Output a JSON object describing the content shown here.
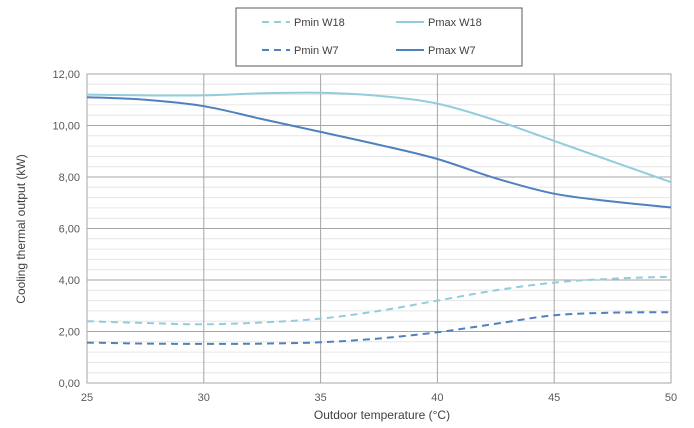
{
  "chart_data": {
    "type": "line",
    "xlabel": "Outdoor temperature (°C)",
    "ylabel": "Cooling thermal output (kW)",
    "xlim": [
      25,
      50
    ],
    "ylim": [
      0,
      12
    ],
    "x_ticks": [
      "25",
      "30",
      "35",
      "40",
      "45",
      "50"
    ],
    "y_ticks": [
      "0,00",
      "2,00",
      "4,00",
      "6,00",
      "8,00",
      "10,00",
      "12,00"
    ],
    "grid": true,
    "legend_position": "top",
    "series": [
      {
        "name": "Pmin W18",
        "color": "#92cddc",
        "dash": "dashed",
        "x": [
          25,
          27.5,
          30,
          32.5,
          35,
          37.5,
          40,
          42.5,
          45,
          47.5,
          50
        ],
        "y": [
          2.4,
          2.33,
          2.28,
          2.35,
          2.5,
          2.8,
          3.2,
          3.6,
          3.9,
          4.05,
          4.13
        ]
      },
      {
        "name": "Pmax W18",
        "color": "#92cddc",
        "dash": "solid",
        "x": [
          25,
          27.5,
          30,
          32.5,
          35,
          37.5,
          40,
          42.5,
          45,
          47.5,
          50
        ],
        "y": [
          11.2,
          11.17,
          11.17,
          11.25,
          11.27,
          11.15,
          10.85,
          10.2,
          9.4,
          8.6,
          7.8
        ]
      },
      {
        "name": "Pmin W7",
        "color": "#4f81bd",
        "dash": "dashed",
        "x": [
          25,
          27.5,
          30,
          32.5,
          35,
          37.5,
          40,
          42.5,
          45,
          47.5,
          50
        ],
        "y": [
          1.57,
          1.53,
          1.52,
          1.53,
          1.58,
          1.73,
          1.97,
          2.3,
          2.63,
          2.73,
          2.75
        ]
      },
      {
        "name": "Pmax W7",
        "color": "#4f81bd",
        "dash": "solid",
        "x": [
          25,
          27.5,
          30,
          32.5,
          35,
          37.5,
          40,
          42.5,
          45,
          47.5,
          50
        ],
        "y": [
          11.1,
          11.0,
          10.75,
          10.25,
          9.75,
          9.25,
          8.7,
          7.95,
          7.35,
          7.05,
          6.82
        ]
      }
    ]
  }
}
